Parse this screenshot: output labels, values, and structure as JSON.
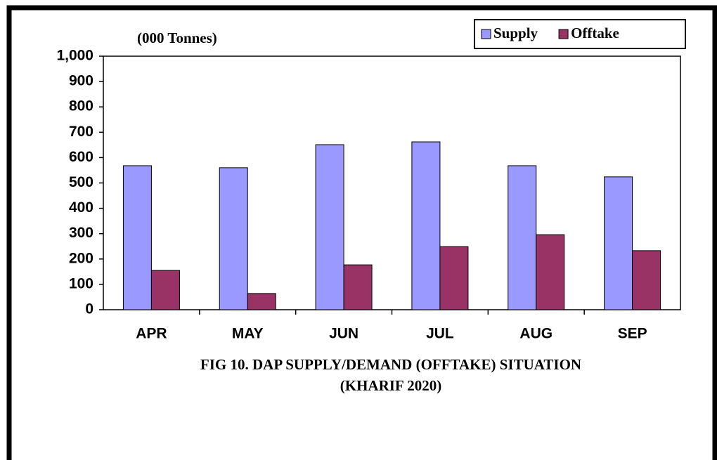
{
  "chart_data": {
    "type": "bar",
    "title": "FIG 10. DAP SUPPLY/DEMAND  (OFFTAKE)  SITUATION",
    "subtitle": "(KHARIF  2020)",
    "y_label": "(000 Tonnes)",
    "categories": [
      "APR",
      "MAY",
      "JUN",
      "JUL",
      "AUG",
      "SEP"
    ],
    "series": [
      {
        "name": "Supply",
        "color": "#9999ff",
        "values": [
          568,
          560,
          651,
          662,
          568,
          524
        ]
      },
      {
        "name": "Offtake",
        "color": "#993366",
        "values": [
          155,
          64,
          177,
          249,
          296,
          233
        ]
      }
    ],
    "ylim": [
      0,
      1000
    ],
    "yticks": [
      0,
      100,
      200,
      300,
      400,
      500,
      600,
      700,
      800,
      900,
      {
        "value": 1000,
        "label": "1,000"
      }
    ],
    "legend": "top-right"
  }
}
